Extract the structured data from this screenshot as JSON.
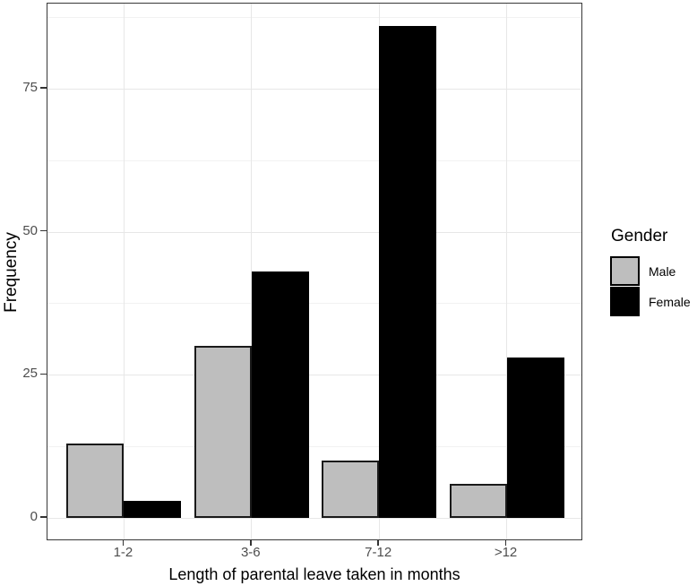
{
  "chart_data": {
    "type": "bar",
    "title": "",
    "xlabel": "Length of parental leave taken in months",
    "ylabel": "Frequency",
    "categories": [
      "1-2",
      "3-6",
      "7-12",
      ">12"
    ],
    "series": [
      {
        "name": "Male",
        "fill": "#bebebe",
        "stroke": "#1a1a1a",
        "values": [
          13,
          30,
          10,
          6
        ]
      },
      {
        "name": "Female",
        "fill": "#000000",
        "stroke": "#000000",
        "values": [
          3,
          43,
          86,
          28
        ]
      }
    ],
    "y_ticks": [
      0,
      25,
      50,
      75
    ],
    "y_minor_ticks": [
      12.5,
      37.5,
      62.5,
      87.5
    ],
    "ylim": [
      -4.3,
      90.3
    ],
    "grid": "major-and-minor-horizontal, major-vertical",
    "legend": {
      "title": "Gender",
      "position": "right"
    }
  },
  "colors": {
    "background": "#ffffff",
    "panel_border": "#383838",
    "grid_major": "#e7e7e7",
    "grid_minor": "#f2f2f2",
    "axis_tick": "#333333",
    "tick_label": "#4d4d4d",
    "axis_title": "#000000"
  }
}
